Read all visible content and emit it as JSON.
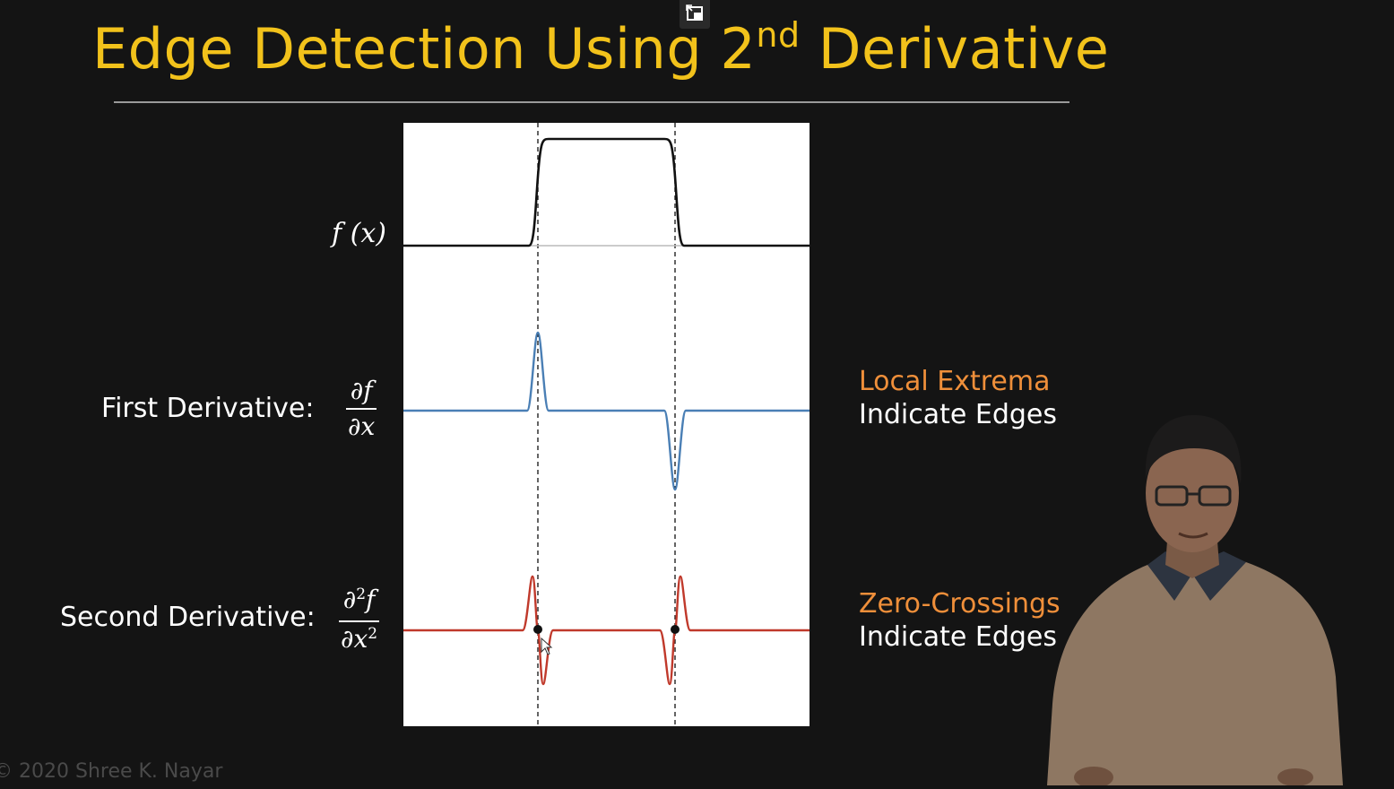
{
  "slide": {
    "title": "Edge Detection Using 2",
    "title_sup": "nd",
    "title_tail": " Derivative",
    "copyright": "© 2020 Shree K. Nayar"
  },
  "labels": {
    "fx": "f (x)",
    "first_derivative": "First Derivative:",
    "first_frac_num": "∂f",
    "first_frac_den": "∂x",
    "second_derivative": "Second Derivative:",
    "second_frac_num_a": "∂",
    "second_frac_num_sup": "2",
    "second_frac_num_b": "f",
    "second_frac_den_a": "∂x",
    "second_frac_den_sup": "2"
  },
  "notes": {
    "extrema_highlight": "Local Extrema",
    "extrema_rest": "Indicate Edges",
    "zero_highlight": "Zero-Crossings",
    "zero_rest": "Indicate Edges"
  },
  "colors": {
    "title": "#f2c21b",
    "highlight": "#ef8f3a",
    "f_curve": "#111111",
    "first_curve": "#4a7fb5",
    "second_curve": "#c0392b"
  },
  "icons": {
    "top": "exit-pip-icon",
    "presenter": "presenter-video"
  }
}
